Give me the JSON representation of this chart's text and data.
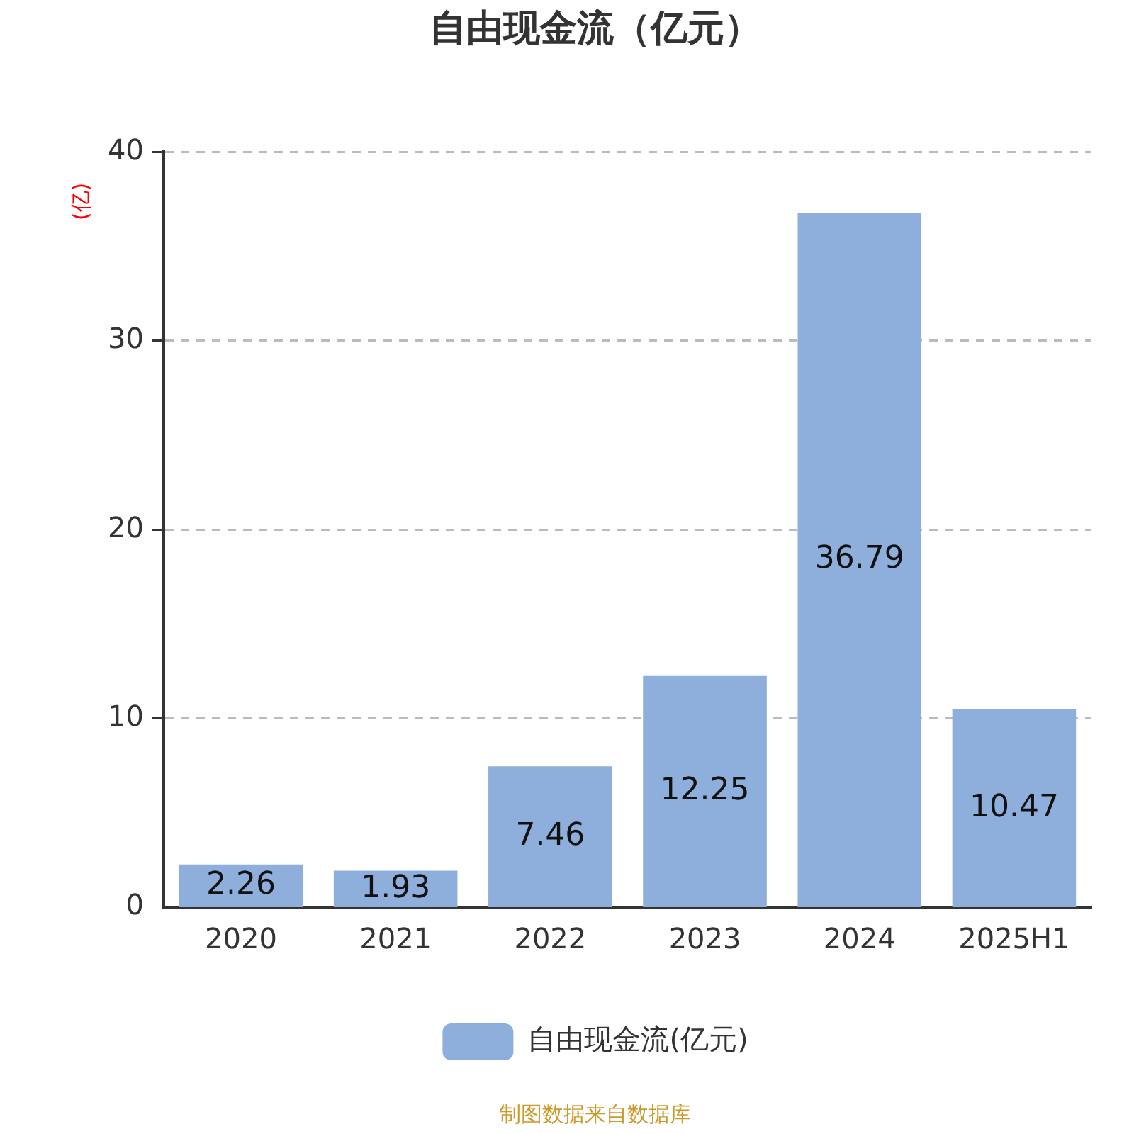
{
  "chart_data": {
    "type": "bar",
    "title": "自由现金流（亿元）",
    "ylabel": "(亿)",
    "categories": [
      "2020",
      "2021",
      "2022",
      "2023",
      "2024",
      "2025H1"
    ],
    "series": [
      {
        "name": "自由现金流(亿元)",
        "color": "#8eaedb",
        "values": [
          2.26,
          1.93,
          7.46,
          12.25,
          36.79,
          10.47
        ]
      }
    ],
    "ylim": [
      0,
      40
    ],
    "yticks": [
      0,
      10,
      20,
      30,
      40
    ],
    "grid": "y",
    "legend": "bottom",
    "data_labels": true,
    "annotations": [
      "制图数据来自数据库"
    ]
  }
}
